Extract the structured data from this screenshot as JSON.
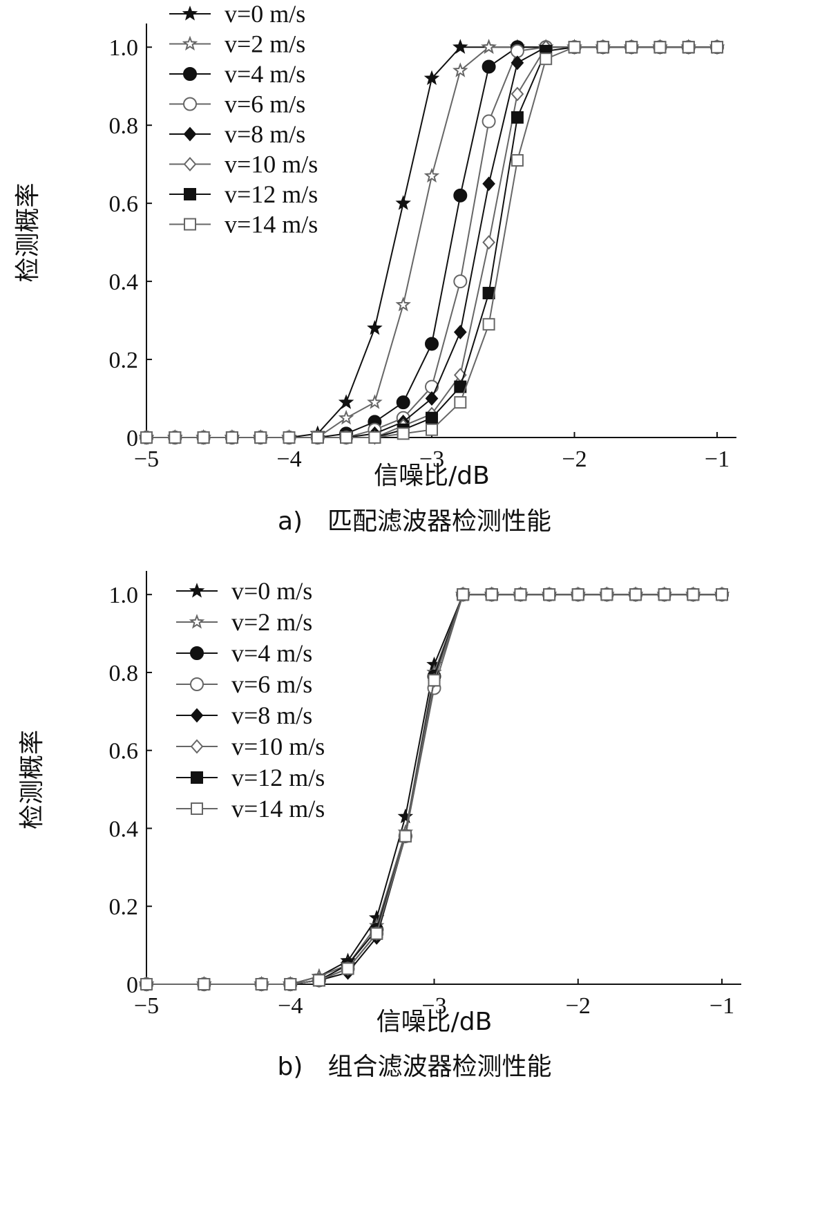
{
  "chart_data": [
    {
      "type": "line",
      "caption": "a)　匹配滤波器检测性能",
      "xlabel": "信噪比/dB",
      "ylabel": "检测概率",
      "xlim": [
        -5,
        -1
      ],
      "ylim": [
        0,
        1.05
      ],
      "xticks": [
        -5,
        -4,
        -3,
        -2,
        -1
      ],
      "xtick_labels": [
        "−5",
        "−4",
        "−3",
        "−2",
        "−1"
      ],
      "yticks": [
        0,
        0.2,
        0.4,
        0.6,
        0.8,
        1.0
      ],
      "ytick_labels": [
        "0",
        "0.2",
        "0.4",
        "0.6",
        "0.8",
        "1.0"
      ],
      "legend_position": "top-left",
      "series": [
        {
          "name": "v=0 m/s",
          "marker": "star-filled",
          "x": [
            -5,
            -4.8,
            -4.6,
            -4.4,
            -4.2,
            -4,
            -3.8,
            -3.6,
            -3.4,
            -3.2,
            -3,
            -2.8,
            -2.6,
            -2.4,
            -2.2,
            -2,
            -1.8,
            -1.6,
            -1.4,
            -1.2,
            -1
          ],
          "y": [
            0,
            0,
            0,
            0,
            0,
            0,
            0.01,
            0.09,
            0.28,
            0.6,
            0.92,
            1,
            1,
            1,
            1,
            1,
            1,
            1,
            1,
            1,
            1
          ]
        },
        {
          "name": "v=2 m/s",
          "marker": "star-open",
          "x": [
            -5,
            -4.8,
            -4.6,
            -4.4,
            -4.2,
            -4,
            -3.8,
            -3.6,
            -3.4,
            -3.2,
            -3,
            -2.8,
            -2.6,
            -2.4,
            -2.2,
            -2,
            -1.8,
            -1.6,
            -1.4,
            -1.2,
            -1
          ],
          "y": [
            0,
            0,
            0,
            0,
            0,
            0,
            0,
            0.05,
            0.09,
            0.34,
            0.67,
            0.94,
            1,
            1,
            1,
            1,
            1,
            1,
            1,
            1,
            1
          ]
        },
        {
          "name": "v=4 m/s",
          "marker": "circle-filled",
          "x": [
            -5,
            -4.8,
            -4.6,
            -4.4,
            -4.2,
            -4,
            -3.8,
            -3.6,
            -3.4,
            -3.2,
            -3,
            -2.8,
            -2.6,
            -2.4,
            -2.2,
            -2,
            -1.8,
            -1.6,
            -1.4,
            -1.2,
            -1
          ],
          "y": [
            0,
            0,
            0,
            0,
            0,
            0,
            0,
            0.01,
            0.04,
            0.09,
            0.24,
            0.62,
            0.95,
            1,
            1,
            1,
            1,
            1,
            1,
            1,
            1
          ]
        },
        {
          "name": "v=6 m/s",
          "marker": "circle-open",
          "x": [
            -5,
            -4.8,
            -4.6,
            -4.4,
            -4.2,
            -4,
            -3.8,
            -3.6,
            -3.4,
            -3.2,
            -3,
            -2.8,
            -2.6,
            -2.4,
            -2.2,
            -2,
            -1.8,
            -1.6,
            -1.4,
            -1.2,
            -1
          ],
          "y": [
            0,
            0,
            0,
            0,
            0,
            0,
            0,
            0,
            0.02,
            0.05,
            0.13,
            0.4,
            0.81,
            0.99,
            1,
            1,
            1,
            1,
            1,
            1,
            1
          ]
        },
        {
          "name": "v=8 m/s",
          "marker": "diamond-filled",
          "x": [
            -5,
            -4.8,
            -4.6,
            -4.4,
            -4.2,
            -4,
            -3.8,
            -3.6,
            -3.4,
            -3.2,
            -3,
            -2.8,
            -2.6,
            -2.4,
            -2.2,
            -2,
            -1.8,
            -1.6,
            -1.4,
            -1.2,
            -1
          ],
          "y": [
            0,
            0,
            0,
            0,
            0,
            0,
            0,
            0,
            0.01,
            0.04,
            0.1,
            0.27,
            0.65,
            0.96,
            1,
            1,
            1,
            1,
            1,
            1,
            1
          ]
        },
        {
          "name": "v=10 m/s",
          "marker": "diamond-open",
          "x": [
            -5,
            -4.8,
            -4.6,
            -4.4,
            -4.2,
            -4,
            -3.8,
            -3.6,
            -3.4,
            -3.2,
            -3,
            -2.8,
            -2.6,
            -2.4,
            -2.2,
            -2,
            -1.8,
            -1.6,
            -1.4,
            -1.2,
            -1
          ],
          "y": [
            0,
            0,
            0,
            0,
            0,
            0,
            0,
            0,
            0,
            0.03,
            0.06,
            0.16,
            0.5,
            0.88,
            1,
            1,
            1,
            1,
            1,
            1,
            1
          ]
        },
        {
          "name": "v=12 m/s",
          "marker": "square-filled",
          "x": [
            -5,
            -4.8,
            -4.6,
            -4.4,
            -4.2,
            -4,
            -3.8,
            -3.6,
            -3.4,
            -3.2,
            -3,
            -2.8,
            -2.6,
            -2.4,
            -2.2,
            -2,
            -1.8,
            -1.6,
            -1.4,
            -1.2,
            -1
          ],
          "y": [
            0,
            0,
            0,
            0,
            0,
            0,
            0,
            0,
            0,
            0.02,
            0.05,
            0.13,
            0.37,
            0.82,
            0.99,
            1,
            1,
            1,
            1,
            1,
            1
          ]
        },
        {
          "name": "v=14 m/s",
          "marker": "square-open",
          "x": [
            -5,
            -4.8,
            -4.6,
            -4.4,
            -4.2,
            -4,
            -3.8,
            -3.6,
            -3.4,
            -3.2,
            -3,
            -2.8,
            -2.6,
            -2.4,
            -2.2,
            -2,
            -1.8,
            -1.6,
            -1.4,
            -1.2,
            -1
          ],
          "y": [
            0,
            0,
            0,
            0,
            0,
            0,
            0,
            0,
            0,
            0.01,
            0.02,
            0.09,
            0.29,
            0.71,
            0.97,
            1,
            1,
            1,
            1,
            1,
            1
          ]
        }
      ]
    },
    {
      "type": "line",
      "caption": "b)　组合滤波器检测性能",
      "xlabel": "信噪比/dB",
      "ylabel": "检测概率",
      "xlim": [
        -5,
        -1
      ],
      "ylim": [
        0,
        1.05
      ],
      "xticks": [
        -5,
        -4,
        -3,
        -2,
        -1
      ],
      "xtick_labels": [
        "−5",
        "−4",
        "−3",
        "−2",
        "−1"
      ],
      "yticks": [
        0,
        0.2,
        0.4,
        0.6,
        0.8,
        1.0
      ],
      "ytick_labels": [
        "0",
        "0.2",
        "0.4",
        "0.6",
        "0.8",
        "1.0"
      ],
      "legend_position": "top-left",
      "series": [
        {
          "name": "v=0 m/s",
          "marker": "star-filled",
          "x": [
            -5,
            -4.6,
            -4.2,
            -4,
            -3.8,
            -3.6,
            -3.4,
            -3.2,
            -3,
            -2.8,
            -2.6,
            -2.4,
            -2.2,
            -2,
            -1.8,
            -1.6,
            -1.4,
            -1.2,
            -1
          ],
          "y": [
            0,
            0,
            0,
            0,
            0.02,
            0.06,
            0.17,
            0.43,
            0.82,
            1,
            1,
            1,
            1,
            1,
            1,
            1,
            1,
            1,
            1
          ]
        },
        {
          "name": "v=2 m/s",
          "marker": "star-open",
          "x": [
            -5,
            -4.6,
            -4.2,
            -4,
            -3.8,
            -3.6,
            -3.4,
            -3.2,
            -3,
            -2.8,
            -2.6,
            -2.4,
            -2.2,
            -2,
            -1.8,
            -1.6,
            -1.4,
            -1.2,
            -1
          ],
          "y": [
            0,
            0,
            0,
            0,
            0.02,
            0.05,
            0.15,
            0.39,
            0.8,
            1,
            1,
            1,
            1,
            1,
            1,
            1,
            1,
            1,
            1
          ]
        },
        {
          "name": "v=4 m/s",
          "marker": "circle-filled",
          "x": [
            -5,
            -4.6,
            -4.2,
            -4,
            -3.8,
            -3.6,
            -3.4,
            -3.2,
            -3,
            -2.8,
            -2.6,
            -2.4,
            -2.2,
            -2,
            -1.8,
            -1.6,
            -1.4,
            -1.2,
            -1
          ],
          "y": [
            0,
            0,
            0,
            0,
            0.01,
            0.05,
            0.14,
            0.38,
            0.79,
            1,
            1,
            1,
            1,
            1,
            1,
            1,
            1,
            1,
            1
          ]
        },
        {
          "name": "v=6 m/s",
          "marker": "circle-open",
          "x": [
            -5,
            -4.6,
            -4.2,
            -4,
            -3.8,
            -3.6,
            -3.4,
            -3.2,
            -3,
            -2.8,
            -2.6,
            -2.4,
            -2.2,
            -2,
            -1.8,
            -1.6,
            -1.4,
            -1.2,
            -1
          ],
          "y": [
            0,
            0,
            0,
            0,
            0.01,
            0.04,
            0.13,
            0.38,
            0.76,
            1,
            1,
            1,
            1,
            1,
            1,
            1,
            1,
            1,
            1
          ]
        },
        {
          "name": "v=8 m/s",
          "marker": "diamond-filled",
          "x": [
            -5,
            -4.6,
            -4.2,
            -4,
            -3.8,
            -3.6,
            -3.4,
            -3.2,
            -3,
            -2.8,
            -2.6,
            -2.4,
            -2.2,
            -2,
            -1.8,
            -1.6,
            -1.4,
            -1.2,
            -1
          ],
          "y": [
            0,
            0,
            0,
            0,
            0.01,
            0.03,
            0.12,
            0.38,
            0.78,
            1,
            1,
            1,
            1,
            1,
            1,
            1,
            1,
            1,
            1
          ]
        },
        {
          "name": "v=10 m/s",
          "marker": "diamond-open",
          "x": [
            -5,
            -4.6,
            -4.2,
            -4,
            -3.8,
            -3.6,
            -3.4,
            -3.2,
            -3,
            -2.8,
            -2.6,
            -2.4,
            -2.2,
            -2,
            -1.8,
            -1.6,
            -1.4,
            -1.2,
            -1
          ],
          "y": [
            0,
            0,
            0,
            0,
            0.01,
            0.04,
            0.13,
            0.38,
            0.78,
            1,
            1,
            1,
            1,
            1,
            1,
            1,
            1,
            1,
            1
          ]
        },
        {
          "name": "v=12 m/s",
          "marker": "square-filled",
          "x": [
            -5,
            -4.6,
            -4.2,
            -4,
            -3.8,
            -3.6,
            -3.4,
            -3.2,
            -3,
            -2.8,
            -2.6,
            -2.4,
            -2.2,
            -2,
            -1.8,
            -1.6,
            -1.4,
            -1.2,
            -1
          ],
          "y": [
            0,
            0,
            0,
            0,
            0.01,
            0.04,
            0.13,
            0.38,
            0.78,
            1,
            1,
            1,
            1,
            1,
            1,
            1,
            1,
            1,
            1
          ]
        },
        {
          "name": "v=14 m/s",
          "marker": "square-open",
          "x": [
            -5,
            -4.6,
            -4.2,
            -4,
            -3.8,
            -3.6,
            -3.4,
            -3.2,
            -3,
            -2.8,
            -2.6,
            -2.4,
            -2.2,
            -2,
            -1.8,
            -1.6,
            -1.4,
            -1.2,
            -1
          ],
          "y": [
            0,
            0,
            0,
            0,
            0.01,
            0.04,
            0.13,
            0.38,
            0.78,
            1,
            1,
            1,
            1,
            1,
            1,
            1,
            1,
            1,
            1
          ]
        }
      ]
    }
  ],
  "colors": {
    "black_series": "#111111",
    "gray_series": "#666666",
    "axis": "#111111",
    "background": "#ffffff"
  }
}
